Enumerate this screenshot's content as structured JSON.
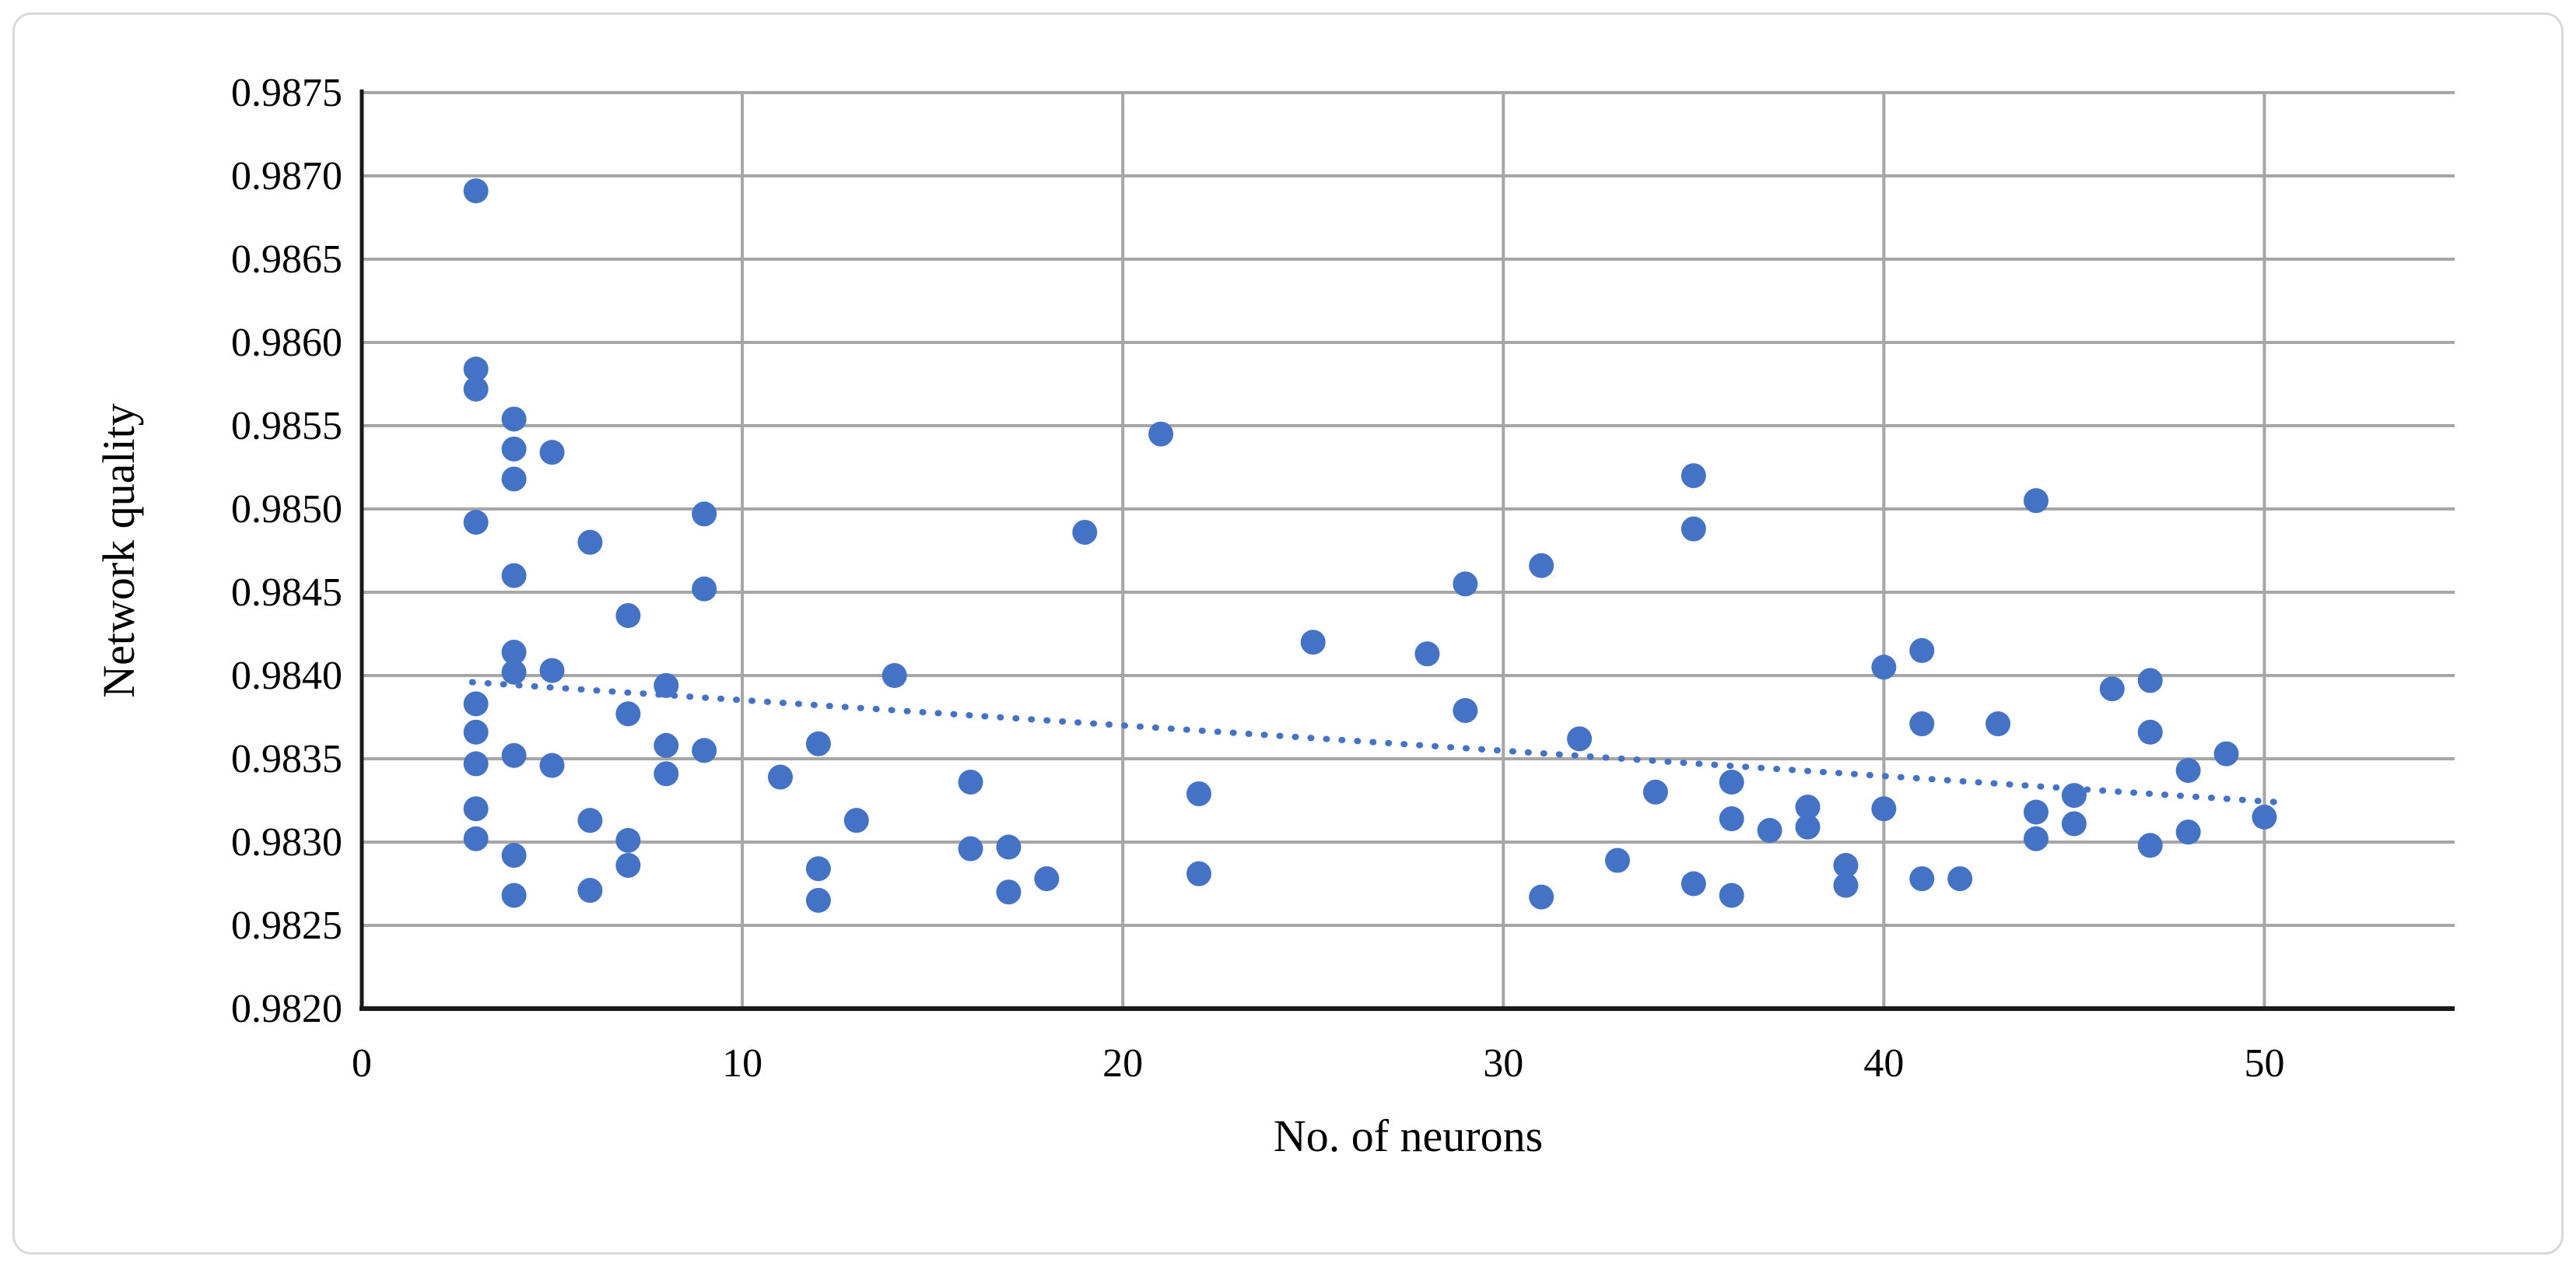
{
  "figure": {
    "background_color": "#FFFFFF",
    "border_color": "#D9D9D9"
  },
  "chart_data": {
    "type": "scatter",
    "title": "",
    "xlabel": "No. of neurons",
    "ylabel": "Network quality",
    "xlim": [
      0,
      55
    ],
    "ylim": [
      0.982,
      0.9875
    ],
    "x_ticks": [
      0,
      10,
      20,
      30,
      40,
      50
    ],
    "y_ticks": [
      0.9875,
      0.987,
      0.9865,
      0.986,
      0.9855,
      0.985,
      0.9845,
      0.984,
      0.9835,
      0.983,
      0.9825,
      0.982
    ],
    "y_tick_decimals": 4,
    "grid": true,
    "legend_position": "none",
    "gridline_color": "#A6A6A6",
    "axis_color": "#1a1a1a",
    "marker": {
      "shape": "circle",
      "color": "#4472C4",
      "radius_px": 16
    },
    "points": [
      [
        3,
        0.98691
      ],
      [
        3,
        0.98584
      ],
      [
        3,
        0.98572
      ],
      [
        3,
        0.98492
      ],
      [
        3,
        0.98383
      ],
      [
        3,
        0.98366
      ],
      [
        3,
        0.98347
      ],
      [
        3,
        0.9832
      ],
      [
        3,
        0.98302
      ],
      [
        4,
        0.98554
      ],
      [
        4,
        0.98536
      ],
      [
        4,
        0.98518
      ],
      [
        4,
        0.9846
      ],
      [
        4,
        0.98414
      ],
      [
        4,
        0.98402
      ],
      [
        4,
        0.98352
      ],
      [
        4,
        0.98292
      ],
      [
        4,
        0.98268
      ],
      [
        5,
        0.98534
      ],
      [
        5,
        0.98403
      ],
      [
        5,
        0.98346
      ],
      [
        6,
        0.9848
      ],
      [
        6,
        0.98313
      ],
      [
        6,
        0.98271
      ],
      [
        7,
        0.98436
      ],
      [
        7,
        0.98377
      ],
      [
        7,
        0.98301
      ],
      [
        7,
        0.98286
      ],
      [
        8,
        0.98394
      ],
      [
        8,
        0.98358
      ],
      [
        8,
        0.98341
      ],
      [
        9,
        0.98497
      ],
      [
        9,
        0.98452
      ],
      [
        9,
        0.98355
      ],
      [
        11,
        0.98339
      ],
      [
        12,
        0.98359
      ],
      [
        12,
        0.98284
      ],
      [
        12,
        0.98265
      ],
      [
        13,
        0.98313
      ],
      [
        14,
        0.984
      ],
      [
        16,
        0.98336
      ],
      [
        16,
        0.98296
      ],
      [
        17,
        0.98297
      ],
      [
        17,
        0.9827
      ],
      [
        18,
        0.98278
      ],
      [
        19,
        0.98486
      ],
      [
        21,
        0.98545
      ],
      [
        22,
        0.98329
      ],
      [
        22,
        0.98281
      ],
      [
        25,
        0.9842
      ],
      [
        28,
        0.98413
      ],
      [
        29,
        0.98455
      ],
      [
        29,
        0.98379
      ],
      [
        31,
        0.98466
      ],
      [
        31,
        0.98267
      ],
      [
        32,
        0.98362
      ],
      [
        33,
        0.98289
      ],
      [
        34,
        0.9833
      ],
      [
        35,
        0.9852
      ],
      [
        35,
        0.98488
      ],
      [
        35,
        0.98275
      ],
      [
        36,
        0.98336
      ],
      [
        36,
        0.98314
      ],
      [
        36,
        0.98268
      ],
      [
        37,
        0.98307
      ],
      [
        38,
        0.98321
      ],
      [
        38,
        0.98309
      ],
      [
        39,
        0.98286
      ],
      [
        39,
        0.98274
      ],
      [
        40,
        0.98405
      ],
      [
        40,
        0.9832
      ],
      [
        41,
        0.98415
      ],
      [
        41,
        0.98371
      ],
      [
        41,
        0.98278
      ],
      [
        42,
        0.98278
      ],
      [
        43,
        0.98371
      ],
      [
        44,
        0.98505
      ],
      [
        44,
        0.98318
      ],
      [
        44,
        0.98302
      ],
      [
        45,
        0.98328
      ],
      [
        45,
        0.98311
      ],
      [
        46,
        0.98392
      ],
      [
        47,
        0.98397
      ],
      [
        47,
        0.98366
      ],
      [
        47,
        0.98298
      ],
      [
        48,
        0.98343
      ],
      [
        48,
        0.98306
      ],
      [
        49,
        0.98353
      ],
      [
        50,
        0.98315
      ]
    ],
    "trendline": {
      "type": "linear",
      "style": "dotted",
      "color": "#4472C4",
      "from": [
        2.9,
        0.98396
      ],
      "to": [
        50.3,
        0.98324
      ]
    }
  }
}
